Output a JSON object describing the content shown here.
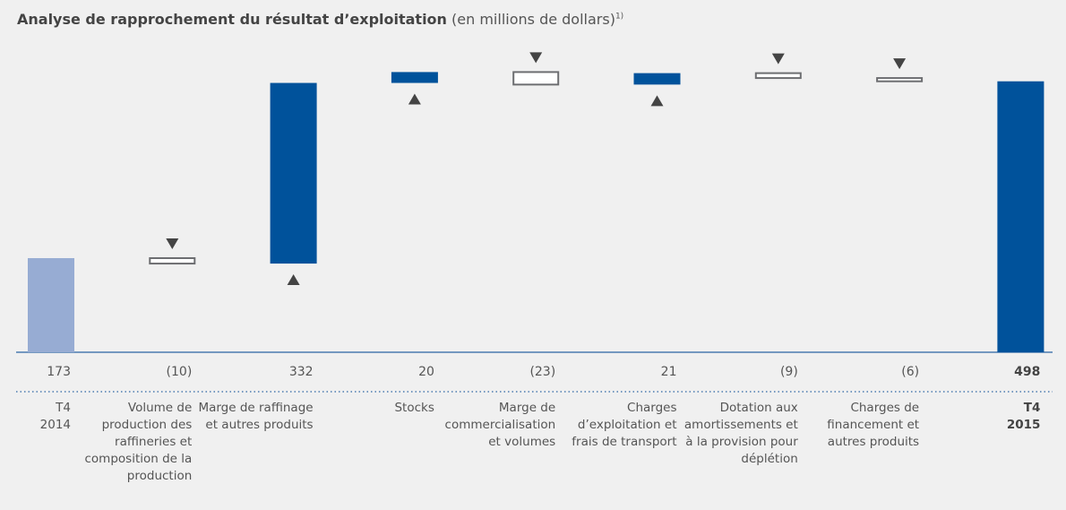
{
  "chart_data": {
    "type": "waterfall",
    "title": "Analyse de rapprochement du résultat d’exploitation",
    "subtitle": "(en millions de dollars)",
    "footnote_marker": "1)",
    "categories": [
      "T4 2014",
      "Volume de production des raffineries et composition de la production",
      "Marge de raffinage et autres produits",
      "Stocks",
      "Marge de commercialisation et volumes",
      "Charges d’exploitation et frais de transport",
      "Dotation aux amortissements et à la provision pour déplétion",
      "Charges de financement et autres produits",
      "T4 2015"
    ],
    "values": [
      173,
      -10,
      332,
      20,
      -23,
      21,
      -9,
      -6,
      498
    ],
    "value_labels": [
      "173",
      "(10)",
      "332",
      "20",
      "(23)",
      "21",
      "(9)",
      "(6)",
      "498"
    ],
    "colors": {
      "start": "#97acd3",
      "increase": "#00529b",
      "decrease": "#ffffff",
      "decrease_outline": "#6d6e71",
      "total": "#00529b"
    }
  }
}
